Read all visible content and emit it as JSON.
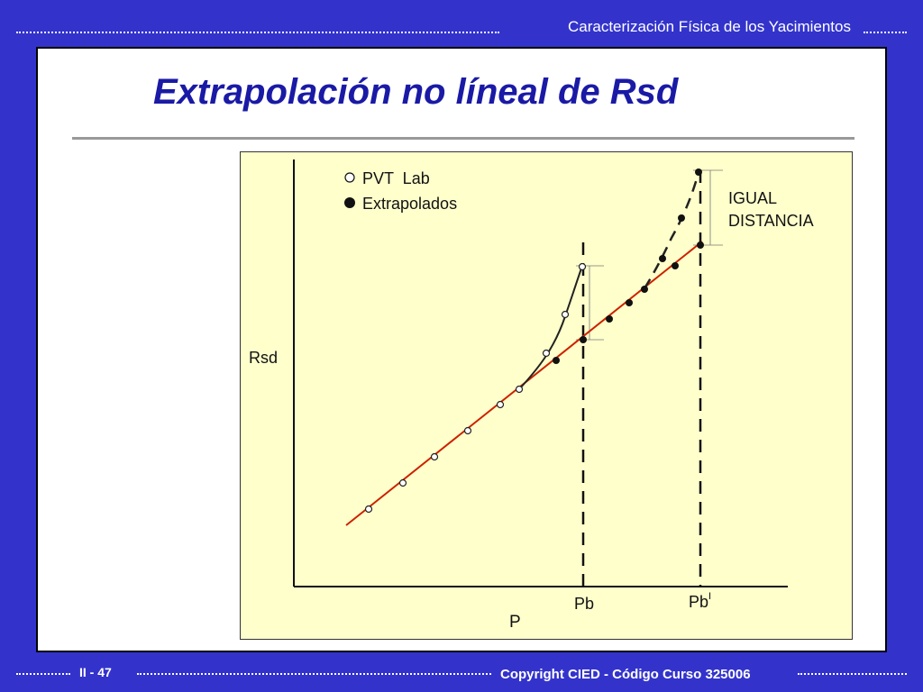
{
  "header": {
    "title": "Caracterización Física de los Yacimientos"
  },
  "slide": {
    "title": "Extrapolación no líneal de Rsd"
  },
  "diagram": {
    "y_axis_label": "Rsd",
    "x_axis_label": "P",
    "pb_label": "Pb",
    "pb_prime_label": "Pb",
    "pb_prime_superscript": "I",
    "legend": [
      {
        "symbol": "open-circle-icon",
        "label": "PVT  Lab"
      },
      {
        "symbol": "filled-circle-icon",
        "label": "Extrapolados"
      }
    ],
    "annotation_line1": "IGUAL",
    "annotation_line2": "DISTANCIA",
    "colors": {
      "trend_line": "#cc2200",
      "curves": "#222222",
      "background": "#ffffcc"
    }
  },
  "footer": {
    "page": "II - 47",
    "copyright": "Copyright CIED - Código Curso 325006"
  }
}
